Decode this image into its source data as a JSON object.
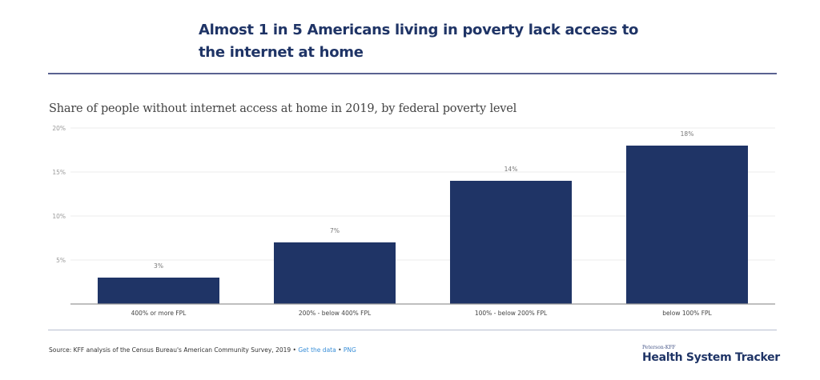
{
  "header": {
    "title": "Almost 1 in 5 Americans living in poverty lack access to the internet at home"
  },
  "chart_data": {
    "type": "bar",
    "title": "Almost 1 in 5 Americans living in poverty lack access to the internet at home",
    "subtitle": "Share of people without internet access at home in 2019, by federal poverty level",
    "categories": [
      "400% or more FPL",
      "200% - below 400% FPL",
      "100% - below 200% FPL",
      "below 100% FPL"
    ],
    "values": [
      3,
      7,
      14,
      18
    ],
    "data_labels": [
      "3%",
      "7%",
      "14%",
      "18%"
    ],
    "xlabel": "",
    "ylabel": "",
    "ylim": [
      0,
      20
    ],
    "yticks": [
      5,
      10,
      15,
      20
    ],
    "ytick_labels": [
      "5%",
      "10%",
      "15%",
      "20%"
    ],
    "grid": true,
    "bar_color": "#1f3466"
  },
  "footer": {
    "source_text": "Source: KFF analysis of the Census Bureau's American Community Survey, 2019 • ",
    "get_data_label": "Get the data",
    "separator": " • ",
    "png_label": "PNG",
    "brand_small": "Peterson-KFF",
    "brand_main": "Health System Tracker"
  }
}
